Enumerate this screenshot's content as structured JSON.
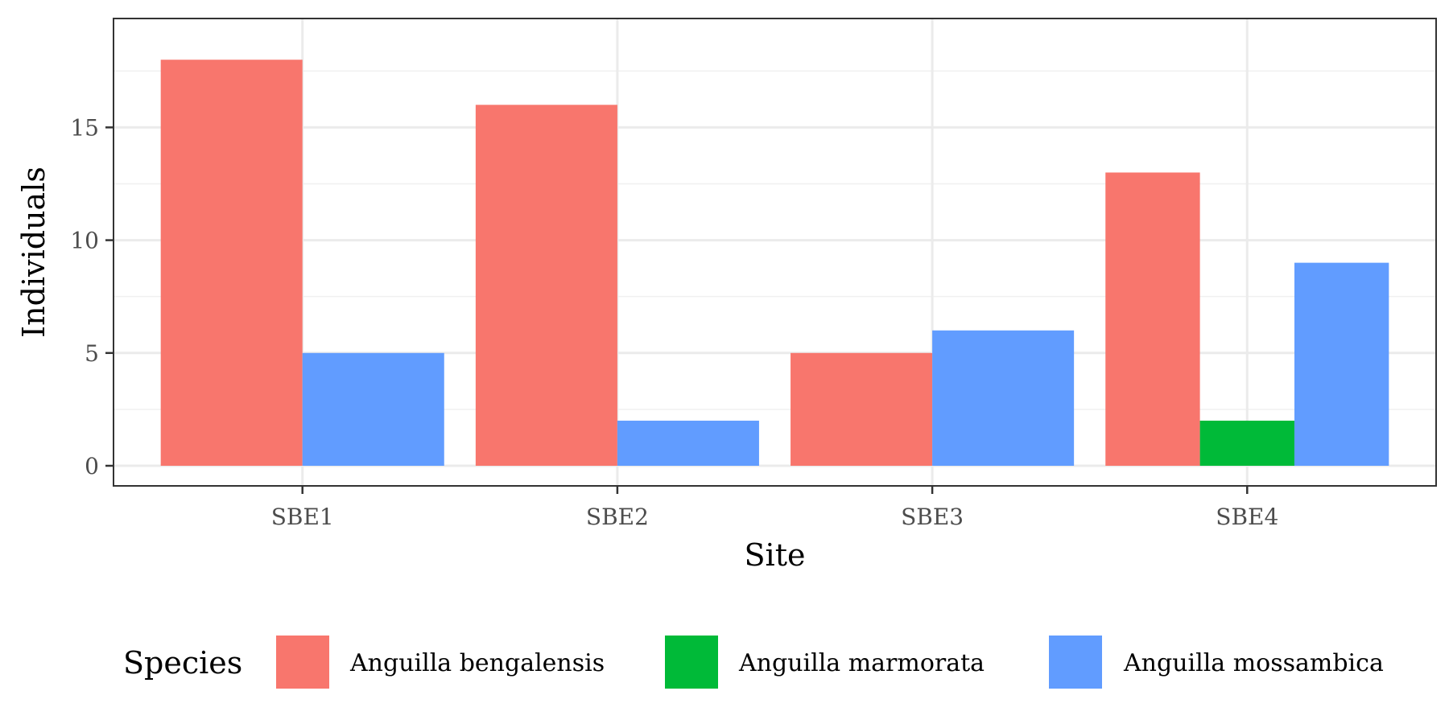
{
  "chart_data": {
    "type": "bar",
    "layout": "dodge",
    "categories": [
      "SBE1",
      "SBE2",
      "SBE3",
      "SBE4"
    ],
    "series": [
      {
        "name": "Anguilla bengalensis",
        "color": "#F8766D",
        "values": [
          18,
          16,
          5,
          13
        ]
      },
      {
        "name": "Anguilla marmorata",
        "color": "#00BA38",
        "values": [
          null,
          null,
          null,
          2
        ]
      },
      {
        "name": "Anguilla mossambica",
        "color": "#619CFF",
        "values": [
          5,
          2,
          6,
          9
        ]
      }
    ],
    "xlabel": "Site",
    "ylabel": "Individuals",
    "ylim": [
      0,
      18.9
    ],
    "yticks": [
      0,
      5,
      10,
      15
    ],
    "ytick_labels": [
      "0",
      "5",
      "10",
      "15"
    ],
    "grid": true,
    "legend": {
      "title": "Species",
      "position": "bottom"
    }
  }
}
